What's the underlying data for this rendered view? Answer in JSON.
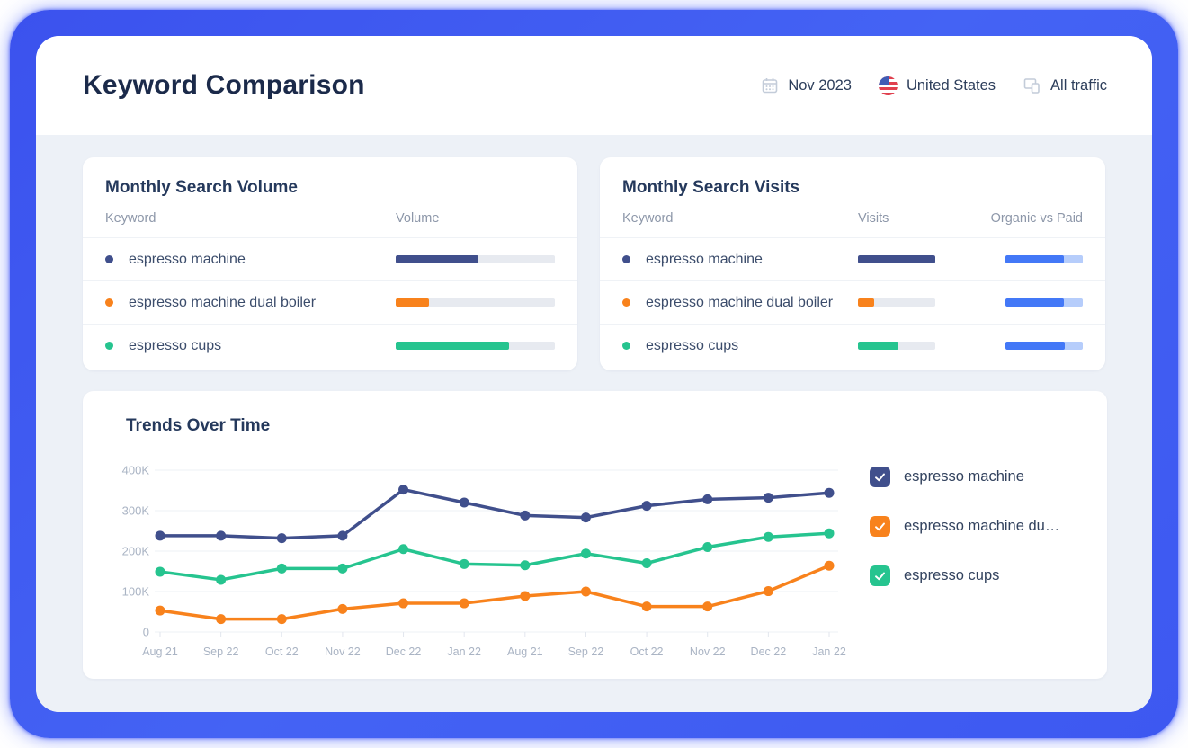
{
  "header": {
    "title": "Keyword Comparison",
    "date_filter": "Nov 2023",
    "country_filter": "United States",
    "traffic_filter": "All traffic"
  },
  "colors": {
    "navy": "#404f8c",
    "orange": "#f8821c",
    "green": "#26c48f",
    "organic_blue": "#4378f7",
    "paid_blue": "#b6cdfb",
    "bar_track": "#e7eaf0"
  },
  "volume_card": {
    "title": "Monthly Search Volume",
    "columns": [
      "Keyword",
      "Volume"
    ],
    "rows": [
      {
        "keyword": "espresso machine",
        "color": "#404f8c",
        "volume_pct": 52
      },
      {
        "keyword": "espresso machine dual boiler",
        "color": "#f8821c",
        "volume_pct": 21
      },
      {
        "keyword": "espresso cups",
        "color": "#26c48f",
        "volume_pct": 71
      }
    ]
  },
  "visits_card": {
    "title": "Monthly Search Visits",
    "columns": [
      "Keyword",
      "Visits",
      "Organic vs Paid"
    ],
    "rows": [
      {
        "keyword": "espresso machine",
        "color": "#404f8c",
        "visits_pct": 100,
        "organic_pct": 75
      },
      {
        "keyword": "espresso machine dual boiler",
        "color": "#f8821c",
        "visits_pct": 21,
        "organic_pct": 75
      },
      {
        "keyword": "espresso cups",
        "color": "#26c48f",
        "visits_pct": 52,
        "organic_pct": 77
      }
    ]
  },
  "trends_card": {
    "title": "Trends Over Time",
    "legend": [
      {
        "label": "espresso machine",
        "color": "#404f8c",
        "checked": true
      },
      {
        "label": "espresso machine du…",
        "color": "#f8821c",
        "checked": true
      },
      {
        "label": "espresso cups",
        "color": "#26c48f",
        "checked": true
      }
    ]
  },
  "chart_data": {
    "type": "line",
    "title": "Trends Over Time",
    "x": [
      "Aug 21",
      "Sep 22",
      "Oct 22",
      "Nov 22",
      "Dec 22",
      "Jan 22",
      "Aug 21",
      "Sep 22",
      "Oct 22",
      "Nov 22",
      "Dec 22",
      "Jan 22"
    ],
    "y_ticks": [
      "400K",
      "300K",
      "200K",
      "100K",
      "0"
    ],
    "ylim": [
      0,
      400000
    ],
    "grid": true,
    "legend_position": "right",
    "series": [
      {
        "name": "espresso machine",
        "color": "#404f8c",
        "values": [
          238000,
          238000,
          232000,
          238000,
          352000,
          320000,
          288000,
          283000,
          312000,
          328000,
          332000,
          344000
        ]
      },
      {
        "name": "espresso machine dual boiler",
        "color": "#f8821c",
        "values": [
          53000,
          32000,
          32000,
          57000,
          71000,
          71000,
          89000,
          100000,
          63000,
          63000,
          101000,
          164000
        ]
      },
      {
        "name": "espresso cups",
        "color": "#26c48f",
        "values": [
          149000,
          129000,
          157000,
          157000,
          205000,
          168000,
          165000,
          194000,
          170000,
          210000,
          235000,
          244000
        ]
      }
    ]
  }
}
